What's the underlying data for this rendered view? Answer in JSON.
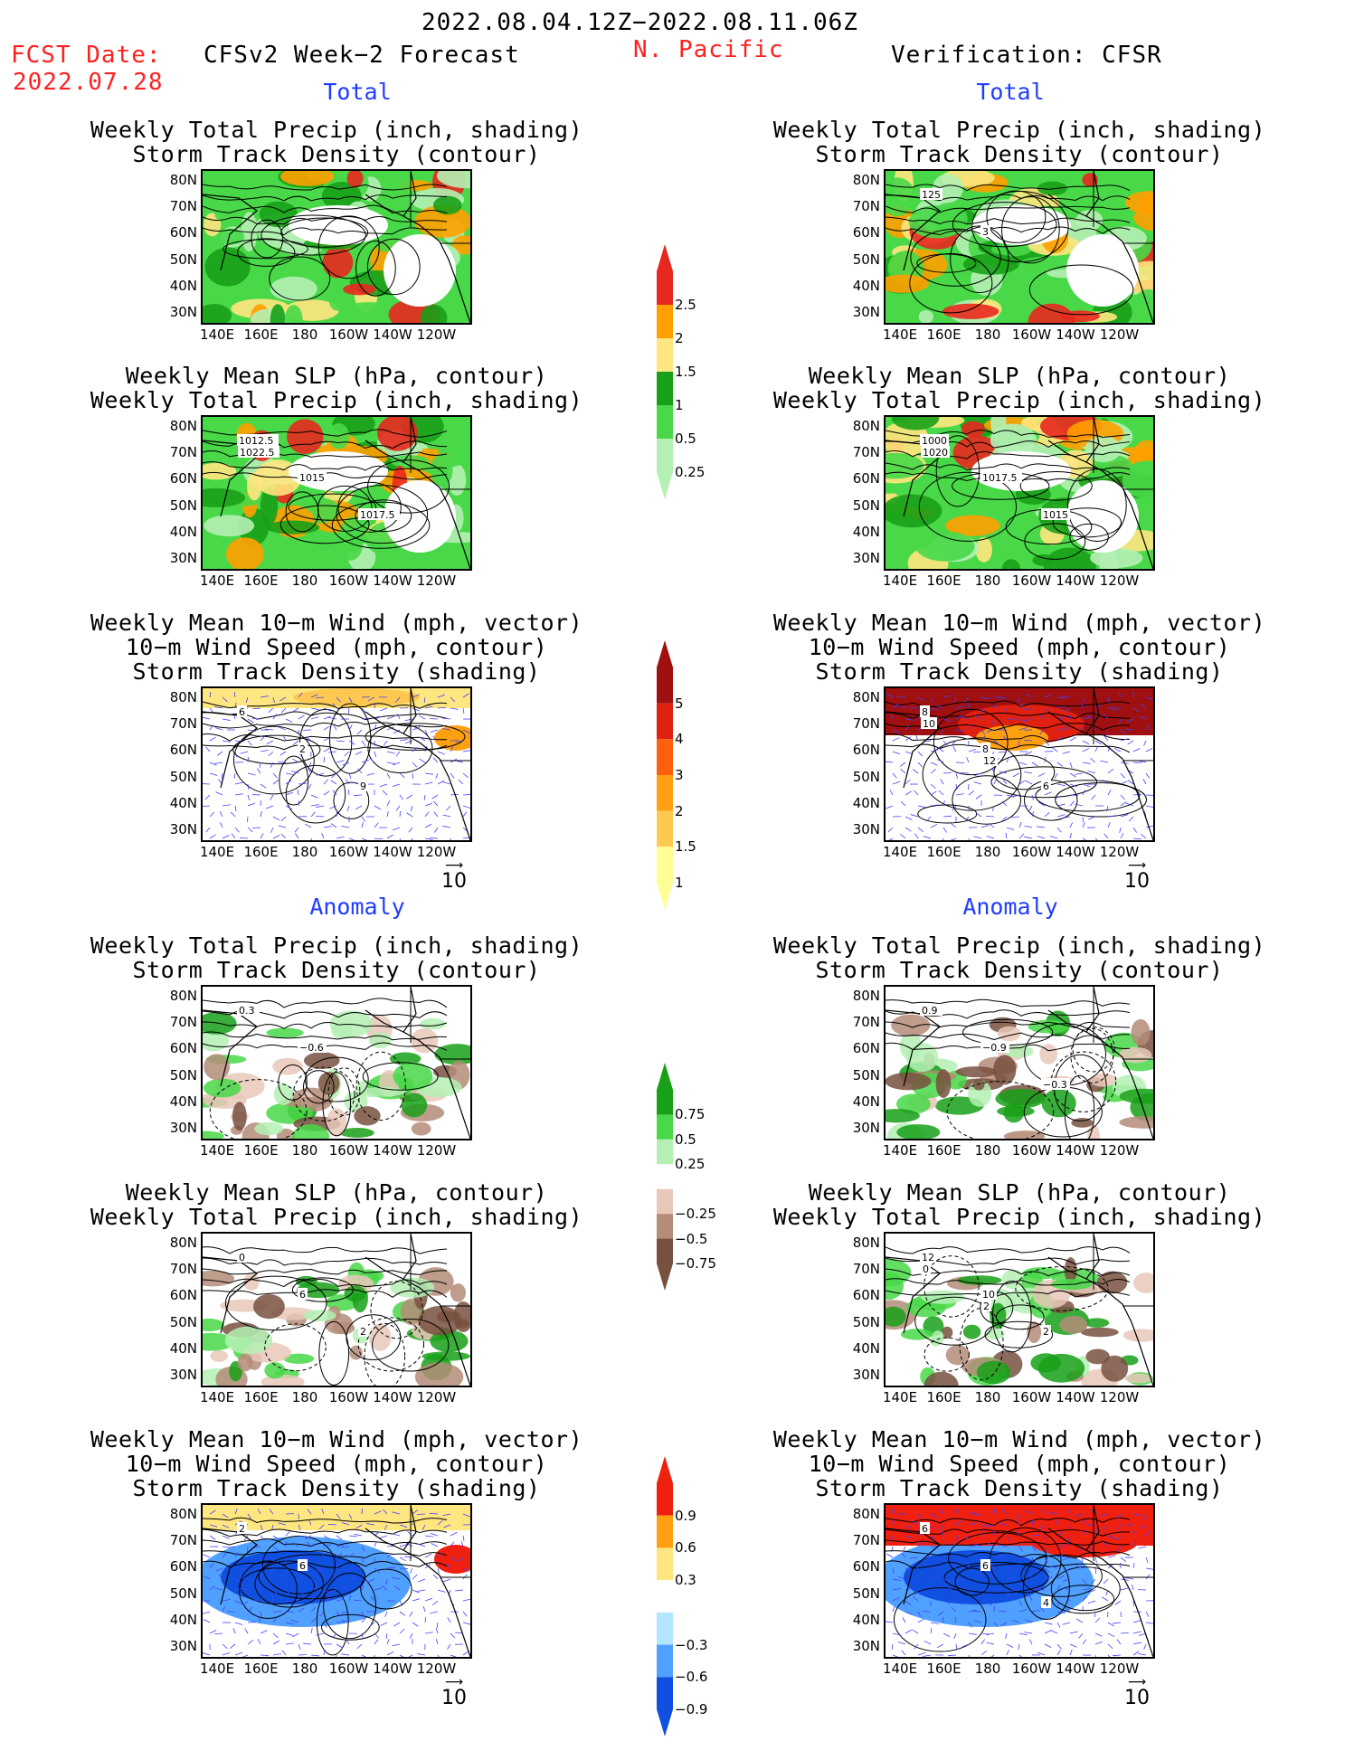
{
  "header": {
    "date_range": "2022.08.04.12Z−2022.08.11.06Z",
    "fcst_label": "FCST Date:",
    "fcst_date": "2022.07.28",
    "forecast_title": "CFSv2 Week−2 Forecast",
    "region": "N. Pacific",
    "verification": "Verification: CFSR"
  },
  "sections": {
    "total": "Total",
    "anomaly": "Anomaly"
  },
  "titles": {
    "precip_storm": [
      "Weekly Total Precip (inch, shading)",
      "Storm Track Density (contour)"
    ],
    "slp_precip": [
      "Weekly Mean SLP (hPa, contour)",
      "Weekly Total Precip (inch, shading)"
    ],
    "wind_storm": [
      "Weekly Mean 10−m Wind (mph, vector)",
      "10−m Wind Speed (mph, contour)",
      "Storm Track Density (shading)"
    ]
  },
  "axes": {
    "lat": [
      "80N",
      "70N",
      "60N",
      "50N",
      "40N",
      "30N"
    ],
    "lon": [
      "140E",
      "160E",
      "180",
      "160W",
      "140W",
      "120W"
    ]
  },
  "vector_ref": "10",
  "colorbars": {
    "precip_total": {
      "labels": [
        "2.5",
        "2",
        "1.5",
        "1",
        "0.5",
        "0.25"
      ],
      "colors": [
        "#e8281e",
        "#ffa000",
        "#ffe680",
        "#18a018",
        "#48d848",
        "#b4f0b4"
      ]
    },
    "storm_total": {
      "labels": [
        "5",
        "4",
        "3",
        "2",
        "1.5",
        "1"
      ],
      "colors": [
        "#a01010",
        "#e02010",
        "#ff6010",
        "#ffa010",
        "#ffc850",
        "#ffff96"
      ]
    },
    "precip_anom": {
      "labels": [
        "0.75",
        "0.5",
        "0.25",
        "−0.25",
        "−0.5",
        "−0.75"
      ],
      "colors": [
        "#18a018",
        "#48d848",
        "#b4f0b4",
        "#ffffff",
        "#e8c8b8",
        "#b48c78",
        "#785040"
      ]
    },
    "storm_anom": {
      "labels": [
        "0.9",
        "0.6",
        "0.3",
        "−0.3",
        "−0.6",
        "−0.9"
      ],
      "colors": [
        "#f02010",
        "#ffa010",
        "#ffe680",
        "#ffffff",
        "#b4e6ff",
        "#50a0ff",
        "#1050e0"
      ]
    }
  },
  "contour_labels": {
    "r1": [
      "125",
      "3"
    ],
    "l2": [
      "1012.5",
      "1015",
      "1017.5",
      "1022.5"
    ],
    "r2": [
      "1000",
      "1017.5",
      "1015",
      "1020"
    ],
    "l3": [
      "6",
      "2",
      "9"
    ],
    "r3": [
      "8",
      "8",
      "6",
      "10",
      "12"
    ],
    "l4": [
      "0.3",
      "−0.6"
    ],
    "r4": [
      "0.9",
      "−0.9",
      "−0.3"
    ],
    "l5": [
      "0",
      "6",
      "2"
    ],
    "r5": [
      "12",
      "10",
      "2",
      "0",
      "2"
    ],
    "l6": [
      "2",
      "6"
    ],
    "r6": [
      "6",
      "6",
      "4"
    ]
  }
}
